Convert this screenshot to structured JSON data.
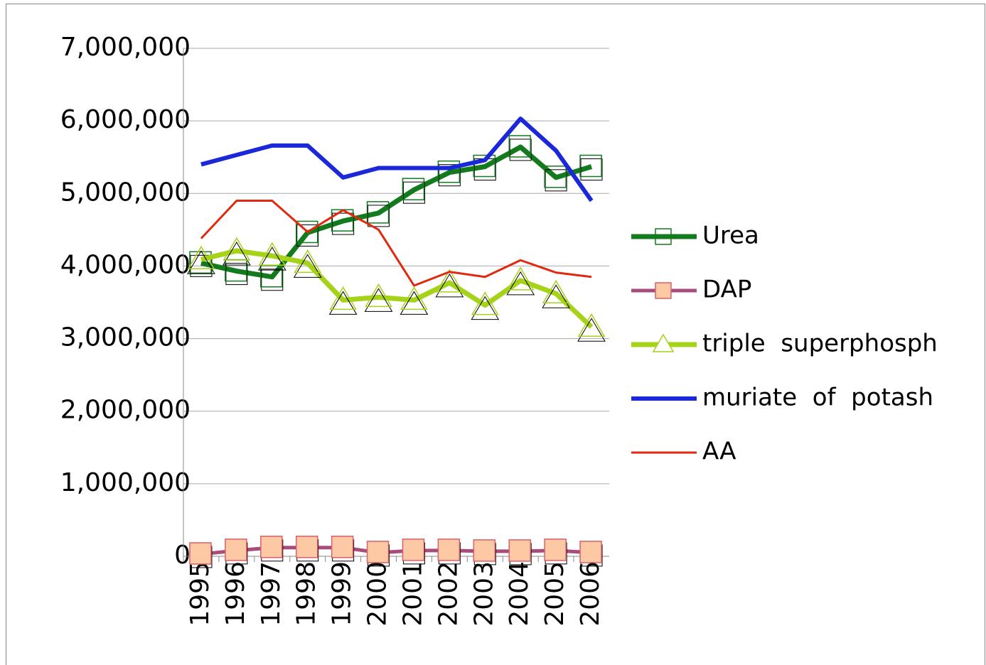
{
  "chart_data": {
    "type": "line",
    "categories": [
      "1995",
      "1996",
      "1997",
      "1998",
      "1999",
      "2000",
      "2001",
      "2002",
      "2003",
      "2004",
      "2005",
      "2006"
    ],
    "series": [
      {
        "name": "Urea",
        "color": "#137a1e",
        "values": [
          4040000,
          3930000,
          3850000,
          4460000,
          4620000,
          4730000,
          5050000,
          5290000,
          5370000,
          5640000,
          5220000,
          5370000
        ]
      },
      {
        "name": "DAP",
        "color": "#a84c7c",
        "values": [
          30000,
          80000,
          120000,
          120000,
          120000,
          50000,
          80000,
          80000,
          70000,
          70000,
          80000,
          50000
        ]
      },
      {
        "name": "triple  superphosph",
        "color": "#a6d21a",
        "values": [
          4090000,
          4210000,
          4140000,
          4040000,
          3530000,
          3570000,
          3530000,
          3770000,
          3460000,
          3800000,
          3620000,
          3160000
        ]
      },
      {
        "name": "muriate  of  potash",
        "color": "#1a28d8",
        "values": [
          5400000,
          5530000,
          5660000,
          5660000,
          5220000,
          5350000,
          5350000,
          5350000,
          5460000,
          6030000,
          5590000,
          4900000
        ]
      },
      {
        "name": "AA",
        "color": "#e02a10",
        "values": [
          4380000,
          4900000,
          4900000,
          4470000,
          4770000,
          4500000,
          3730000,
          3920000,
          3850000,
          4080000,
          3910000,
          3850000
        ]
      }
    ],
    "ylim": [
      0,
      7000000
    ],
    "yticks": [
      0,
      {
        "value": 1000000,
        "label": "1,000,000"
      },
      {
        "value": 2000000,
        "label": "2,000,000"
      },
      {
        "value": 3000000,
        "label": "3,000,000"
      },
      {
        "value": 4000000,
        "label": "4,000,000"
      },
      {
        "value": 5000000,
        "label": "5,000,000"
      },
      {
        "value": 6000000,
        "label": "6,000,000"
      },
      {
        "value": 7000000,
        "label": "7,000,000"
      }
    ],
    "grid": true,
    "legend": "right"
  }
}
